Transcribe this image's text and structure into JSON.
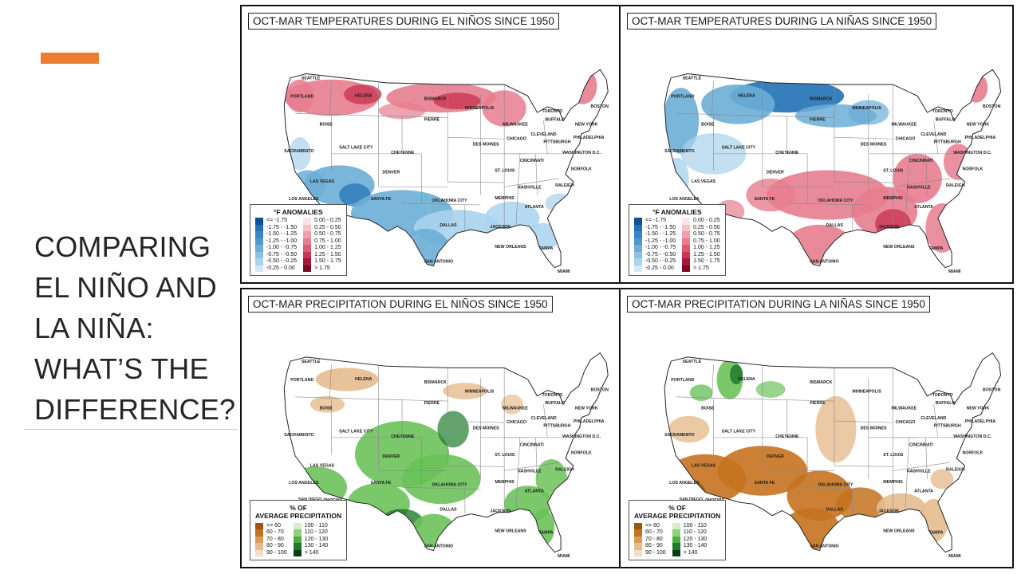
{
  "slide": {
    "title_lines": [
      "COMPARING",
      "EL NIÑO AND",
      "LA NIÑA:",
      "WHAT’S THE",
      "DIFFERENCE?"
    ],
    "accent_color": "#ed7d31"
  },
  "panels": {
    "temp_elnino": {
      "title": "OCT-MAR TEMPERATURES DURING EL NIÑOS SINCE 1950"
    },
    "temp_lanina": {
      "title": "OCT-MAR TEMPERATURES DURING LA NIÑAS SINCE 1950"
    },
    "precip_elnino": {
      "title": "OCT-MAR PRECIPITATION DURING EL NIÑOS SINCE 1950"
    },
    "precip_lanina": {
      "title": "OCT-MAR PRECIPITATION DURING LA NIÑAS SINCE 1950"
    }
  },
  "temp_legend": {
    "title": "°F ANOMALIES",
    "cold": [
      {
        "label": "<= -1.75",
        "color": "#08519c"
      },
      {
        "label": "-1.75 - -1.50",
        "color": "#2171b5"
      },
      {
        "label": "-1.50 - -1.25",
        "color": "#3a84c4"
      },
      {
        "label": "-1.25 - -1.00",
        "color": "#4f97d0"
      },
      {
        "label": "-1.00 - -0.75",
        "color": "#6baed6"
      },
      {
        "label": "-0.75 - -0.50",
        "color": "#8cc1e3"
      },
      {
        "label": "-0.50 - -0.25",
        "color": "#a9d3ee"
      },
      {
        "label": "-0.25 - 0.00",
        "color": "#d4e8f6"
      }
    ],
    "warm": [
      {
        "label": "0.00 - 0.25",
        "color": "#fbe3e6"
      },
      {
        "label": "0.25 - 0.50",
        "color": "#f6c2ca"
      },
      {
        "label": "0.50 - 0.75",
        "color": "#f0a0ad"
      },
      {
        "label": "0.75 - 1.00",
        "color": "#e77d8f"
      },
      {
        "label": "1.00 - 1.25",
        "color": "#dc5a72"
      },
      {
        "label": "1.25 - 1.50",
        "color": "#c93653"
      },
      {
        "label": "1.50 - 1.75",
        "color": "#a8183a"
      },
      {
        "label": "> 1.75",
        "color": "#7a0a25"
      }
    ]
  },
  "precip_legend": {
    "title_line1": "% OF",
    "title_line2": "AVERAGE PRECIPITATION",
    "dry": [
      {
        "label": "<= 60",
        "color": "#a3530c"
      },
      {
        "label": "60 - 70",
        "color": "#c6721f"
      },
      {
        "label": "70 - 80",
        "color": "#d99a5a"
      },
      {
        "label": "80 - 90",
        "color": "#e6bc8f"
      },
      {
        "label": "90 - 100",
        "color": "#f3ddc6"
      }
    ],
    "wet": [
      {
        "label": "100 - 110",
        "color": "#d7eccb"
      },
      {
        "label": "110 - 120",
        "color": "#8fd07a"
      },
      {
        "label": "120 - 130",
        "color": "#4cae3f"
      },
      {
        "label": "130 - 140",
        "color": "#1f7a2c"
      },
      {
        "label": "> 140",
        "color": "#0b3d14"
      }
    ]
  },
  "cities": [
    "SEATTLE",
    "PORTLAND",
    "BOISE",
    "HELENA",
    "BISMARCK",
    "MINNEAPOLIS",
    "PIERRE",
    "SACRAMENTO",
    "SALT LAKE CITY",
    "CHEYENNE",
    "DES MOINES",
    "MILWAUKEE",
    "CHICAGO",
    "TORONTO",
    "BUFFALO",
    "BOSTON",
    "NEW YORK",
    "CLEVELAND",
    "PITTSBURGH",
    "PHILADELPHIA",
    "WASHINGTON D.C.",
    "DENVER",
    "ST. LOUIS",
    "CINCINNATI",
    "NORFOLK",
    "RALEIGH",
    "LAS VEGAS",
    "LOS ANGELES",
    "SAN DIEGO",
    "PHOENIX",
    "SANTA FE",
    "OKLAHOMA CITY",
    "MEMPHIS",
    "NASHVILLE",
    "ATLANTA",
    "DALLAS",
    "JACKSON",
    "NEW ORLEANS",
    "SAN ANTONIO",
    "TAMPA",
    "MIAMI"
  ],
  "map_colors": {
    "outline": "#222222",
    "state_line": "#888888",
    "red": "#e77d8f",
    "red_dark": "#c93653",
    "blue": "#6baed6",
    "blue_light": "#a9d3ee",
    "blue_dark": "#2171b5",
    "green": "#6cc25a",
    "green_dark": "#1f7a2c",
    "brown": "#c6721f",
    "brown_light": "#e6bc8f",
    "brown_dark": "#a3530c"
  }
}
